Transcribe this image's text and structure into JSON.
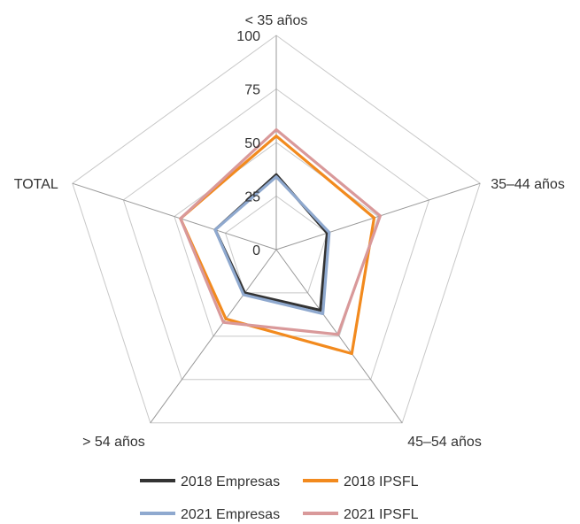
{
  "chart_data": {
    "type": "radar",
    "title": "",
    "axes": [
      "< 35 años",
      "35–44 años",
      "45–54 años",
      "> 54 años",
      "TOTAL"
    ],
    "scale": {
      "min": 0,
      "max": 100,
      "ticks": [
        0,
        25,
        50,
        75,
        100
      ]
    },
    "grid": true,
    "legend": "bottom",
    "series": [
      {
        "name": "2018 Empresas",
        "color": "#333333",
        "values": [
          35,
          25,
          35,
          25,
          30
        ]
      },
      {
        "name": "2018 IPSFL",
        "color": "#f28a1e",
        "values": [
          53,
          48,
          60,
          40,
          47
        ]
      },
      {
        "name": "2021 Empresas",
        "color": "#8fa9cf",
        "values": [
          34,
          26,
          37,
          26,
          30
        ]
      },
      {
        "name": "2021 IPSFL",
        "color": "#d9999a",
        "values": [
          56,
          51,
          49,
          42,
          47
        ]
      }
    ]
  }
}
